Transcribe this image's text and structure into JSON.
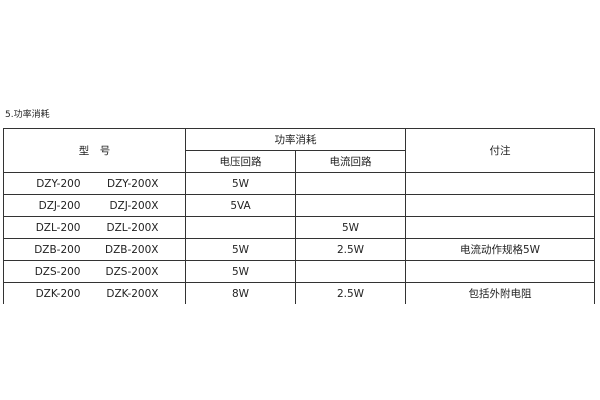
{
  "section_title": "5.功率消耗",
  "table": {
    "headers": {
      "model": "型　号",
      "power": "功率消耗",
      "voltage_circuit": "电压回路",
      "current_circuit": "电流回路",
      "note": "付注"
    },
    "rows": [
      {
        "model_a": "DZY-200",
        "model_b": "DZY-200X",
        "voltage": "5W",
        "current": "",
        "note": ""
      },
      {
        "model_a": "DZJ-200",
        "model_b": "DZJ-200X",
        "voltage": "5VA",
        "current": "",
        "note": ""
      },
      {
        "model_a": "DZL-200",
        "model_b": "DZL-200X",
        "voltage": "",
        "current": "5W",
        "note": ""
      },
      {
        "model_a": "DZB-200",
        "model_b": "DZB-200X",
        "voltage": "5W",
        "current": "2.5W",
        "note": "电流动作规格5W"
      },
      {
        "model_a": "DZS-200",
        "model_b": "DZS-200X",
        "voltage": "5W",
        "current": "",
        "note": ""
      },
      {
        "model_a": "DZK-200",
        "model_b": "DZK-200X",
        "voltage": "8W",
        "current": "2.5W",
        "note": "包括外附电阻"
      }
    ]
  }
}
